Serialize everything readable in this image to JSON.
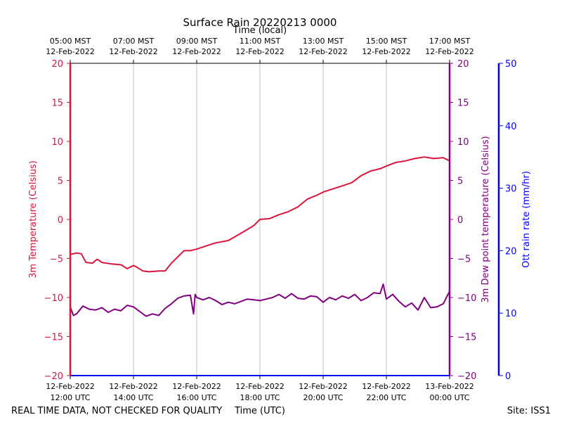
{
  "chart_data": {
    "type": "line",
    "title": "Surface Rain 20220213 0000",
    "top_axis_title": "Time (local)",
    "xlabel": "Time (UTC)",
    "footer_left": "REAL TIME DATA, NOT CHECKED FOR QUALITY",
    "footer_right": "Site: ISS1",
    "x_utc_hours": [
      12,
      14,
      16,
      18,
      20,
      22,
      24
    ],
    "xlim": [
      12,
      24
    ],
    "x_ticks_utc": [
      {
        "line1": "12-Feb-2022",
        "line2": "12:00 UTC"
      },
      {
        "line1": "12-Feb-2022",
        "line2": "14:00 UTC"
      },
      {
        "line1": "12-Feb-2022",
        "line2": "16:00 UTC"
      },
      {
        "line1": "12-Feb-2022",
        "line2": "18:00 UTC"
      },
      {
        "line1": "12-Feb-2022",
        "line2": "20:00 UTC"
      },
      {
        "line1": "12-Feb-2022",
        "line2": "22:00 UTC"
      },
      {
        "line1": "13-Feb-2022",
        "line2": "00:00 UTC"
      }
    ],
    "x_ticks_local": [
      {
        "line1": "05:00 MST",
        "line2": "12-Feb-2022"
      },
      {
        "line1": "07:00 MST",
        "line2": "12-Feb-2022"
      },
      {
        "line1": "09:00 MST",
        "line2": "12-Feb-2022"
      },
      {
        "line1": "11:00 MST",
        "line2": "12-Feb-2022"
      },
      {
        "line1": "13:00 MST",
        "line2": "12-Feb-2022"
      },
      {
        "line1": "15:00 MST",
        "line2": "12-Feb-2022"
      },
      {
        "line1": "17:00 MST",
        "line2": "12-Feb-2022"
      }
    ],
    "left_axis": {
      "label": "3m Temperature (Celsius)",
      "ylim": [
        -20,
        20
      ],
      "ticks": [
        -20,
        -15,
        -10,
        -5,
        0,
        5,
        10,
        15,
        20
      ],
      "color": "#dc143c"
    },
    "right_axis": {
      "label": "3m Dew point temperature (Celsius)",
      "ylim": [
        -20,
        20
      ],
      "ticks": [
        -20,
        -15,
        -10,
        -5,
        0,
        5,
        10,
        15,
        20
      ],
      "color": "#800080"
    },
    "rain_axis": {
      "label": "Ott rain rate (mm/hr)",
      "ylim": [
        0,
        50
      ],
      "ticks": [
        0,
        10,
        20,
        30,
        40,
        50
      ],
      "color": "#0000ff"
    },
    "series": [
      {
        "name": "3m Temperature",
        "color": "#dc143c",
        "x": [
          12.0,
          12.2,
          12.35,
          12.5,
          12.7,
          12.85,
          13.0,
          13.3,
          13.6,
          13.8,
          14.0,
          14.1,
          14.3,
          14.5,
          14.8,
          15.0,
          15.2,
          15.4,
          15.6,
          15.8,
          16.0,
          16.3,
          16.6,
          17.0,
          17.3,
          17.6,
          17.8,
          18.0,
          18.3,
          18.6,
          18.9,
          19.2,
          19.5,
          19.8,
          20.0,
          20.3,
          20.6,
          20.9,
          21.2,
          21.5,
          21.8,
          22.1,
          22.3,
          22.6,
          22.9,
          23.2,
          23.5,
          23.8,
          24.0
        ],
        "values": [
          -4.5,
          -4.3,
          -4.4,
          -5.5,
          -5.6,
          -5.1,
          -5.5,
          -5.7,
          -5.8,
          -6.3,
          -5.9,
          -6.1,
          -6.6,
          -6.7,
          -6.6,
          -6.6,
          -5.6,
          -4.8,
          -4.0,
          -4.0,
          -3.8,
          -3.4,
          -3.0,
          -2.7,
          -2.0,
          -1.3,
          -0.8,
          0.0,
          0.1,
          0.6,
          1.0,
          1.6,
          2.6,
          3.1,
          3.5,
          3.9,
          4.3,
          4.7,
          5.6,
          6.2,
          6.5,
          7.0,
          7.3,
          7.5,
          7.8,
          8.0,
          7.8,
          7.9,
          7.5
        ]
      },
      {
        "name": "3m Dew point temperature",
        "color": "#800080",
        "x": [
          12.0,
          12.1,
          12.2,
          12.4,
          12.6,
          12.8,
          13.0,
          13.2,
          13.4,
          13.6,
          13.8,
          14.0,
          14.2,
          14.4,
          14.6,
          14.8,
          15.0,
          15.2,
          15.4,
          15.6,
          15.8,
          15.9,
          15.95,
          16.0,
          16.2,
          16.4,
          16.6,
          16.8,
          17.0,
          17.2,
          17.4,
          17.6,
          17.8,
          18.0,
          18.2,
          18.4,
          18.6,
          18.8,
          19.0,
          19.2,
          19.4,
          19.6,
          19.8,
          20.0,
          20.2,
          20.4,
          20.6,
          20.8,
          21.0,
          21.2,
          21.4,
          21.6,
          21.8,
          21.9,
          22.0,
          22.2,
          22.4,
          22.6,
          22.8,
          23.0,
          23.2,
          23.4,
          23.6,
          23.8,
          24.0
        ],
        "values": [
          -11.2,
          -12.3,
          -12.1,
          -11.1,
          -11.5,
          -11.6,
          -11.3,
          -11.9,
          -11.5,
          -11.7,
          -11.0,
          -11.2,
          -11.8,
          -12.4,
          -12.1,
          -12.3,
          -11.4,
          -10.8,
          -10.1,
          -9.8,
          -9.7,
          -12.1,
          -9.6,
          -10.0,
          -10.3,
          -10.0,
          -10.4,
          -10.9,
          -10.6,
          -10.8,
          -10.5,
          -10.2,
          -10.3,
          -10.4,
          -10.2,
          -10.0,
          -9.6,
          -10.1,
          -9.5,
          -10.1,
          -10.2,
          -9.8,
          -9.9,
          -10.6,
          -10.0,
          -10.3,
          -9.8,
          -10.1,
          -9.6,
          -10.4,
          -10.0,
          -9.4,
          -9.5,
          -8.3,
          -10.2,
          -9.6,
          -10.5,
          -11.2,
          -10.7,
          -11.6,
          -10.0,
          -11.3,
          -11.2,
          -10.8,
          -9.2
        ]
      },
      {
        "name": "Ott rain rate",
        "color": "#0000ff",
        "x": [
          12,
          24
        ],
        "values": [
          0,
          0
        ]
      }
    ]
  }
}
